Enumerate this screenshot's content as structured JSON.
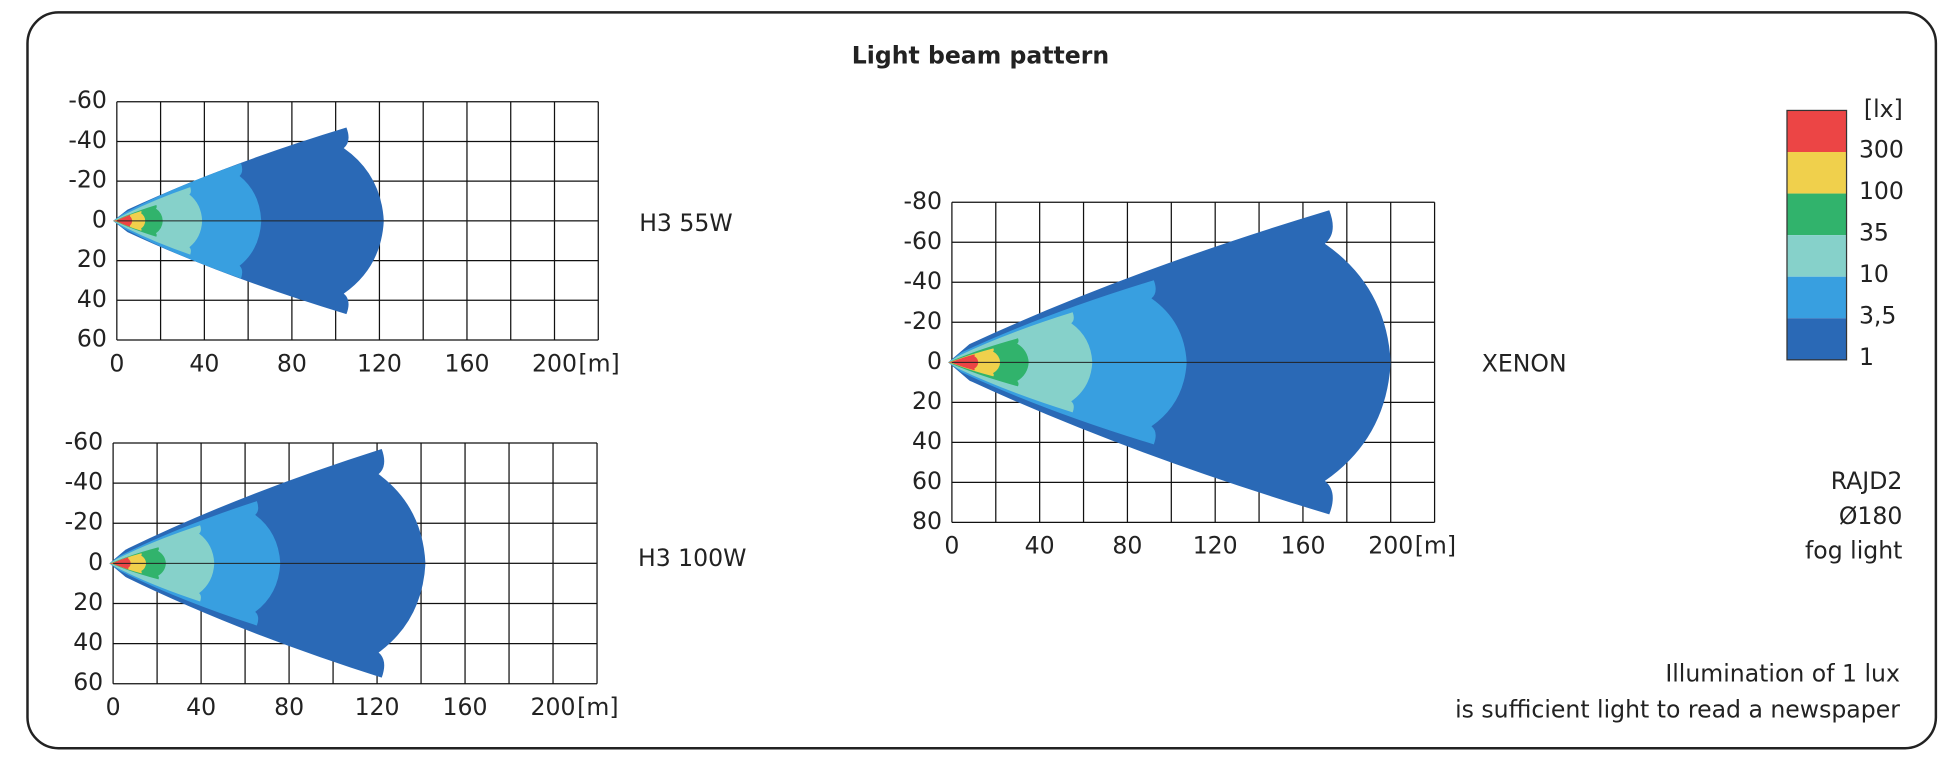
{
  "title": "Light beam pattern",
  "legend": {
    "unit": "[lx]",
    "levels": [
      {
        "label": "300",
        "color": "#ec4545"
      },
      {
        "label": "100",
        "color": "#f0d04c"
      },
      {
        "label": "35",
        "color": "#31b36c"
      },
      {
        "label": "10",
        "color": "#86d1ca"
      },
      {
        "label": "3,5",
        "color": "#389fe0"
      },
      {
        "label": "1",
        "color": "#2a69b6"
      }
    ]
  },
  "panels": [
    {
      "name": "H3 55W",
      "x_unit": "[m]",
      "xlim": [
        0,
        220
      ],
      "xticks": [
        0,
        40,
        80,
        120,
        160,
        200
      ],
      "xgrid": [
        0,
        20,
        40,
        60,
        80,
        100,
        120,
        140,
        160,
        180,
        200,
        220
      ],
      "ylim": [
        -60,
        60
      ],
      "yticks": [
        -60,
        -40,
        -20,
        0,
        20,
        40,
        60
      ],
      "contours": [
        {
          "reach": 7,
          "width": 3
        },
        {
          "reach": 13,
          "width": 5
        },
        {
          "reach": 21,
          "width": 8
        },
        {
          "reach": 39,
          "width": 17
        },
        {
          "reach": 66,
          "width": 29
        },
        {
          "reach": 122,
          "width": 47
        }
      ]
    },
    {
      "name": "H3 100W",
      "x_unit": "[m]",
      "xlim": [
        0,
        220
      ],
      "xticks": [
        0,
        40,
        80,
        120,
        160,
        200
      ],
      "xgrid": [
        0,
        20,
        40,
        60,
        80,
        100,
        120,
        140,
        160,
        180,
        200,
        220
      ],
      "ylim": [
        -60,
        60
      ],
      "yticks": [
        -60,
        -40,
        -20,
        0,
        20,
        40,
        60
      ],
      "contours": [
        {
          "reach": 8,
          "width": 3
        },
        {
          "reach": 15,
          "width": 5
        },
        {
          "reach": 24,
          "width": 8
        },
        {
          "reach": 46,
          "width": 19
        },
        {
          "reach": 76,
          "width": 31
        },
        {
          "reach": 142,
          "width": 57
        }
      ]
    },
    {
      "name": "XENON",
      "x_unit": "[m]",
      "xlim": [
        0,
        220
      ],
      "xticks": [
        0,
        40,
        80,
        120,
        160,
        200
      ],
      "xgrid": [
        0,
        20,
        40,
        60,
        80,
        100,
        120,
        140,
        160,
        180,
        200,
        220
      ],
      "ylim": [
        -80,
        80
      ],
      "yticks": [
        -80,
        -60,
        -40,
        -20,
        0,
        20,
        40,
        60,
        80
      ],
      "contours": [
        {
          "reach": 12,
          "width": 4
        },
        {
          "reach": 22,
          "width": 7
        },
        {
          "reach": 35,
          "width": 12
        },
        {
          "reach": 64,
          "width": 25
        },
        {
          "reach": 107,
          "width": 41
        },
        {
          "reach": 200,
          "width": 76
        }
      ]
    }
  ],
  "notes": [
    "RAJD2",
    "Ø180",
    "fog light"
  ],
  "footnote": [
    "Illumination of 1 lux",
    "is sufficient light to read a newspaper"
  ]
}
